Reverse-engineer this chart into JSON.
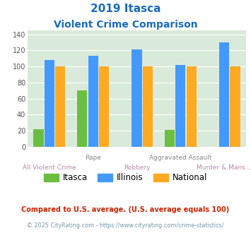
{
  "title_line1": "2019 Itasca",
  "title_line2": "Violent Crime Comparison",
  "categories": [
    "All Violent Crime",
    "Rape",
    "Robbery",
    "Aggravated Assault",
    "Murder & Mans..."
  ],
  "label_row1": [
    "",
    "Rape",
    "",
    "Aggravated Assault",
    ""
  ],
  "label_row2": [
    "All Violent Crime",
    "",
    "Robbery",
    "",
    "Murder & Mans..."
  ],
  "itasca": [
    22,
    70,
    0,
    21,
    0
  ],
  "illinois": [
    108,
    113,
    121,
    102,
    130
  ],
  "national": [
    100,
    100,
    100,
    100,
    100
  ],
  "itasca_color": "#6abf40",
  "illinois_color": "#4499ff",
  "national_color": "#ffaa22",
  "bg_color": "#daeada",
  "ylim": [
    0,
    145
  ],
  "yticks": [
    0,
    20,
    40,
    60,
    80,
    100,
    120,
    140
  ],
  "footnote1": "Compared to U.S. average. (U.S. average equals 100)",
  "footnote2": "© 2025 CityRating.com - https://www.cityrating.com/crime-statistics/",
  "title_color": "#1a6bbf",
  "footnote1_color": "#cc2200",
  "footnote2_color": "#7799aa"
}
